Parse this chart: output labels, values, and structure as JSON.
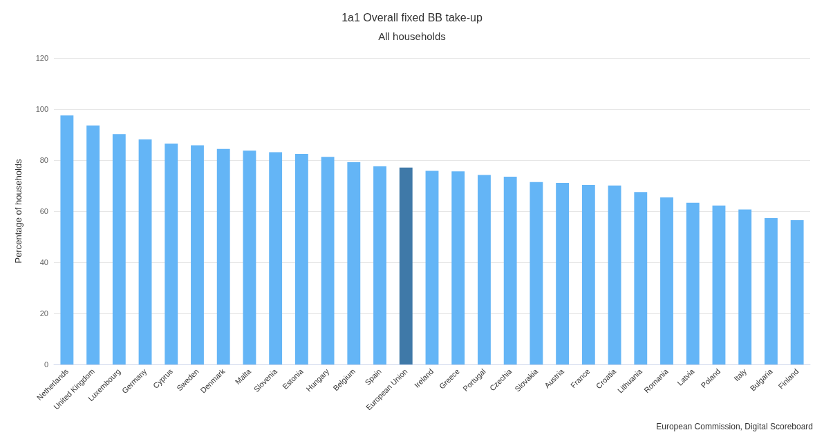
{
  "chart_data": {
    "type": "bar",
    "title": "1a1 Overall fixed BB take-up",
    "subtitle": "All households",
    "ylabel": "Percentage of households",
    "categories": [
      "Netherlands",
      "United Kingdom",
      "Luxembourg",
      "Germany",
      "Cyprus",
      "Sweden",
      "Denmark",
      "Malta",
      "Slovenia",
      "Estonia",
      "Hungary",
      "Belgium",
      "Spain",
      "European Union",
      "Ireland",
      "Greece",
      "Portugal",
      "Czechia",
      "Slovakia",
      "Austria",
      "France",
      "Croatia",
      "Lithuania",
      "Romania",
      "Latvia",
      "Poland",
      "Italy",
      "Bulgaria",
      "Finland"
    ],
    "values": [
      97.5,
      93.6,
      90.2,
      88.1,
      86.5,
      85.8,
      84.4,
      83.7,
      83.1,
      82.4,
      81.3,
      79.2,
      77.6,
      77.1,
      75.8,
      75.6,
      74.2,
      73.5,
      71.4,
      71.1,
      70.3,
      70.1,
      67.5,
      65.4,
      63.3,
      62.2,
      60.7,
      57.3,
      56.5
    ],
    "colors": [
      "#64b5f6",
      "#64b5f6",
      "#64b5f6",
      "#64b5f6",
      "#64b5f6",
      "#64b5f6",
      "#64b5f6",
      "#64b5f6",
      "#64b5f6",
      "#64b5f6",
      "#64b5f6",
      "#64b5f6",
      "#64b5f6",
      "#3f79a8",
      "#64b5f6",
      "#64b5f6",
      "#64b5f6",
      "#64b5f6",
      "#64b5f6",
      "#64b5f6",
      "#64b5f6",
      "#64b5f6",
      "#64b5f6",
      "#64b5f6",
      "#64b5f6",
      "#64b5f6",
      "#64b5f6",
      "#64b5f6",
      "#64b5f6"
    ],
    "ylim": [
      0,
      120
    ],
    "yticks": [
      0,
      20,
      40,
      60,
      80,
      100,
      120
    ],
    "grid": "y",
    "annotations": [
      "European Commission, Digital Scoreboard"
    ]
  }
}
